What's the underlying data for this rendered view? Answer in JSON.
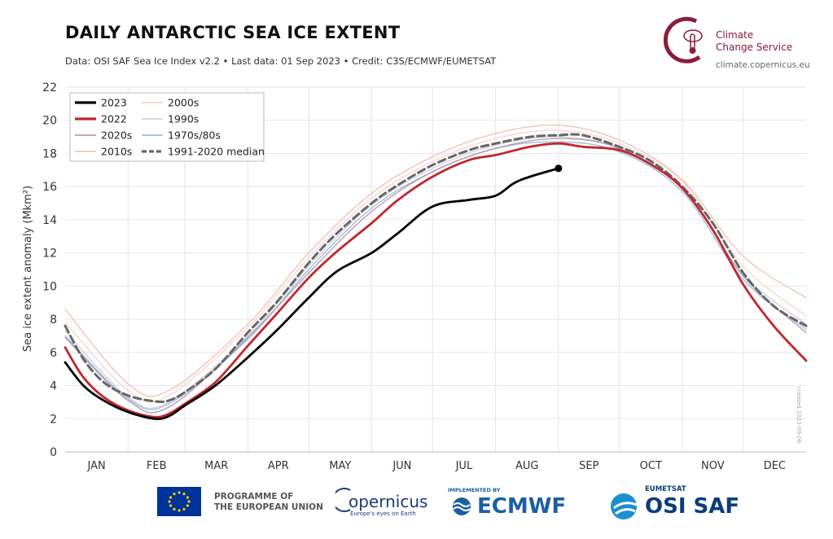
{
  "header": {
    "title": "DAILY ANTARCTIC SEA ICE EXTENT",
    "subtitle": "Data: OSI SAF Sea Ice Index v2.2 • Last data: 01 Sep 2023 • Credit: C3S/ECMWF/EUMETSAT"
  },
  "brand": {
    "line1": "Climate",
    "line2": "Change Service",
    "url": "climate.copernicus.eu",
    "color": "#8b1c3a"
  },
  "created_note": "created 2023-09-06",
  "footer": {
    "eu_line1": "PROGRAMME OF",
    "eu_line2": "THE EUROPEAN UNION",
    "copernicus": "opernicus",
    "copernicus_sub": "Europe's eyes on Earth",
    "ecmwf_small": "IMPLEMENTED BY",
    "ecmwf": "ECMWF",
    "eumetsat": "EUMETSAT",
    "osisaf": "OSI SAF"
  },
  "chart_data": {
    "type": "line",
    "ylabel": "Sea ice extent anomaly (Mkm²)",
    "xlabel": "",
    "ylim": [
      0,
      22
    ],
    "yticks": [
      0,
      2,
      4,
      6,
      8,
      10,
      12,
      14,
      16,
      18,
      20,
      22
    ],
    "xlim": [
      1,
      366
    ],
    "month_labels": [
      "JAN",
      "FEB",
      "MAR",
      "APR",
      "MAY",
      "JUN",
      "JUL",
      "AUG",
      "SEP",
      "OCT",
      "NOV",
      "DEC"
    ],
    "month_starts": [
      1,
      32,
      60,
      91,
      121,
      152,
      182,
      213,
      244,
      274,
      305,
      335
    ],
    "grid": true,
    "legend_position": "top-left",
    "legend": [
      {
        "label": "2023",
        "color": "#000000",
        "style": "solid",
        "weight": "heavy"
      },
      {
        "label": "2022",
        "color": "#c1272d",
        "style": "solid",
        "weight": "heavy"
      },
      {
        "label": "2020s",
        "color": "#b08aa8",
        "style": "solid",
        "weight": "thin"
      },
      {
        "label": "2010s",
        "color": "#f2b8aa",
        "style": "solid",
        "weight": "thin"
      },
      {
        "label": "2000s",
        "color": "#f5cfc6",
        "style": "solid",
        "weight": "thin"
      },
      {
        "label": "1990s",
        "color": "#c6cbd6",
        "style": "solid",
        "weight": "thin"
      },
      {
        "label": "1970s/80s",
        "color": "#8fb2d6",
        "style": "solid",
        "weight": "thin"
      },
      {
        "label": "1991-2020 median",
        "color": "#666666",
        "style": "dashed",
        "weight": "heavy"
      }
    ],
    "series": [
      {
        "name": "1991-2020 median",
        "color": "#666666",
        "dashed": true,
        "x": [
          1,
          10,
          20,
          32,
          45,
          52,
          60,
          75,
          91,
          105,
          121,
          135,
          152,
          165,
          182,
          200,
          213,
          230,
          244,
          256,
          274,
          290,
          305,
          320,
          335,
          350,
          366
        ],
        "y": [
          7.6,
          5.6,
          4.2,
          3.4,
          3.05,
          3.1,
          3.6,
          5.0,
          7.2,
          9.0,
          11.4,
          13.2,
          15.0,
          16.1,
          17.3,
          18.2,
          18.6,
          19.0,
          19.1,
          19.1,
          18.4,
          17.5,
          16.0,
          13.8,
          10.8,
          8.8,
          7.6
        ]
      },
      {
        "name": "2022",
        "color": "#c1272d",
        "dashed": false,
        "x": [
          1,
          10,
          20,
          32,
          45,
          52,
          60,
          75,
          91,
          105,
          121,
          135,
          152,
          165,
          182,
          200,
          213,
          230,
          244,
          256,
          274,
          290,
          305,
          320,
          335,
          350,
          366
        ],
        "y": [
          6.3,
          4.5,
          3.3,
          2.5,
          2.1,
          2.3,
          2.9,
          4.2,
          6.4,
          8.3,
          10.5,
          12.1,
          13.8,
          15.2,
          16.6,
          17.6,
          17.9,
          18.4,
          18.6,
          18.4,
          18.2,
          17.3,
          15.9,
          13.4,
          10.1,
          7.6,
          5.5
        ]
      },
      {
        "name": "2023",
        "color": "#000000",
        "dashed": false,
        "x": [
          1,
          10,
          20,
          32,
          45,
          52,
          60,
          75,
          91,
          105,
          121,
          135,
          152,
          165,
          182,
          200,
          213,
          222,
          230,
          244
        ],
        "y": [
          5.4,
          4.0,
          3.1,
          2.4,
          2.0,
          2.15,
          2.8,
          4.0,
          5.7,
          7.3,
          9.3,
          10.9,
          12.0,
          13.2,
          14.8,
          15.2,
          15.45,
          16.2,
          16.6,
          17.1
        ]
      },
      {
        "name": "2020s",
        "color": "#b08aa8",
        "dashed": false,
        "x": [
          1,
          32,
          52,
          91,
          121,
          152,
          182,
          213,
          244,
          274,
          305,
          335,
          366
        ],
        "y": [
          6.9,
          3.1,
          2.7,
          6.9,
          10.8,
          14.5,
          16.9,
          18.3,
          18.9,
          18.3,
          15.9,
          10.6,
          7.2
        ]
      },
      {
        "name": "2010s",
        "color": "#f2b8aa",
        "dashed": false,
        "x": [
          1,
          32,
          52,
          91,
          121,
          152,
          182,
          213,
          244,
          274,
          305,
          335,
          366
        ],
        "y": [
          8.6,
          4.1,
          3.7,
          7.7,
          12.0,
          15.6,
          17.8,
          19.2,
          19.7,
          18.8,
          16.4,
          11.8,
          9.3
        ]
      },
      {
        "name": "2000s",
        "color": "#f5cfc6",
        "dashed": false,
        "x": [
          1,
          32,
          52,
          91,
          121,
          152,
          182,
          213,
          244,
          274,
          305,
          335,
          366
        ],
        "y": [
          7.8,
          3.7,
          3.4,
          7.5,
          11.7,
          15.3,
          17.5,
          18.9,
          19.4,
          18.6,
          16.3,
          11.2,
          8.2
        ]
      },
      {
        "name": "1990s",
        "color": "#c6cbd6",
        "dashed": false,
        "x": [
          1,
          32,
          52,
          91,
          121,
          152,
          182,
          213,
          244,
          274,
          305,
          335,
          366
        ],
        "y": [
          7.3,
          3.3,
          3.0,
          7.0,
          11.2,
          14.9,
          17.1,
          18.5,
          19.0,
          18.3,
          15.9,
          10.7,
          7.7
        ]
      },
      {
        "name": "1970s/80s",
        "color": "#8fb2d6",
        "dashed": false,
        "x": [
          1,
          32,
          52,
          91,
          121,
          152,
          182,
          213,
          244,
          274,
          305,
          335,
          366
        ],
        "y": [
          7.0,
          3.2,
          2.9,
          6.8,
          11.0,
          14.7,
          16.9,
          18.3,
          18.7,
          18.1,
          15.7,
          10.4,
          7.4
        ]
      }
    ],
    "last_point": {
      "x": 244,
      "y": 17.1
    }
  }
}
